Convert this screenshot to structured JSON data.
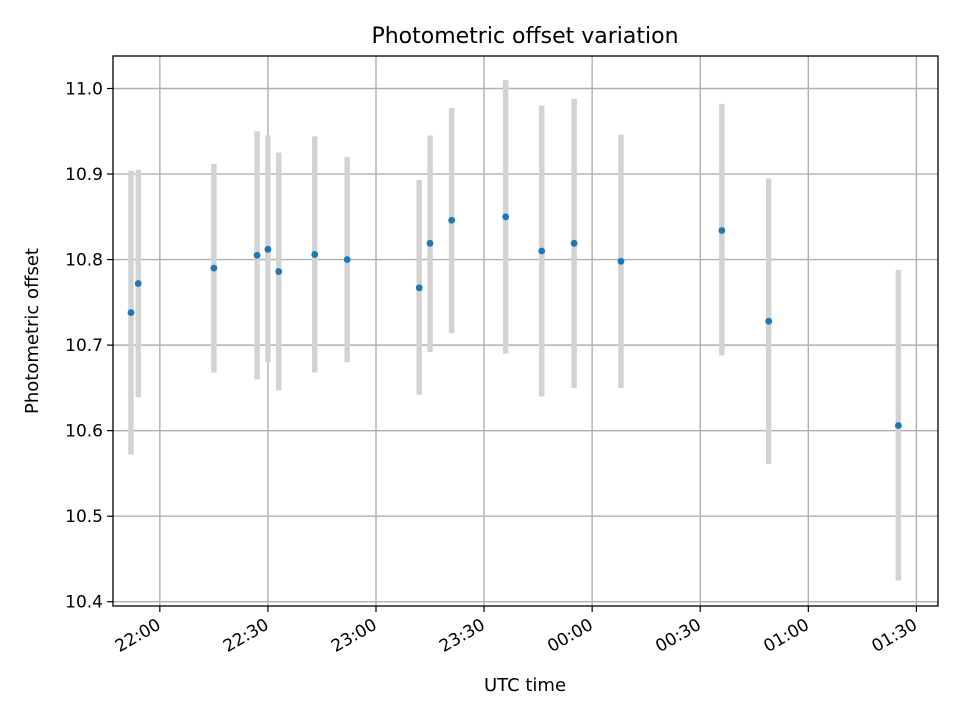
{
  "chart_data": {
    "type": "scatter",
    "title": "Photometric offset variation",
    "xlabel": "UTC time",
    "ylabel": "Photometric offset",
    "xlim": [
      "21:47",
      "01:36"
    ],
    "ylim": [
      10.395,
      11.038
    ],
    "x_ticks": [
      "22:00",
      "22:30",
      "23:00",
      "23:30",
      "00:00",
      "00:30",
      "01:00",
      "01:30"
    ],
    "y_ticks": [
      10.4,
      10.5,
      10.6,
      10.7,
      10.8,
      10.9,
      11.0
    ],
    "grid": true,
    "series": [
      {
        "marker_color": "#1f77b4",
        "errorbar_color": "#d3d3d3",
        "points": [
          {
            "x": "21:52",
            "y": 10.738,
            "ylow": 10.572,
            "yhigh": 10.904
          },
          {
            "x": "21:54",
            "y": 10.772,
            "ylow": 10.639,
            "yhigh": 10.905
          },
          {
            "x": "22:15",
            "y": 10.79,
            "ylow": 10.668,
            "yhigh": 10.912
          },
          {
            "x": "22:27",
            "y": 10.805,
            "ylow": 10.66,
            "yhigh": 10.95
          },
          {
            "x": "22:30",
            "y": 10.812,
            "ylow": 10.68,
            "yhigh": 10.945
          },
          {
            "x": "22:33",
            "y": 10.786,
            "ylow": 10.647,
            "yhigh": 10.925
          },
          {
            "x": "22:43",
            "y": 10.806,
            "ylow": 10.668,
            "yhigh": 10.944
          },
          {
            "x": "22:52",
            "y": 10.8,
            "ylow": 10.68,
            "yhigh": 10.92
          },
          {
            "x": "23:12",
            "y": 10.767,
            "ylow": 10.642,
            "yhigh": 10.893
          },
          {
            "x": "23:15",
            "y": 10.819,
            "ylow": 10.692,
            "yhigh": 10.945
          },
          {
            "x": "23:21",
            "y": 10.846,
            "ylow": 10.714,
            "yhigh": 10.977
          },
          {
            "x": "23:36",
            "y": 10.85,
            "ylow": 10.69,
            "yhigh": 11.01
          },
          {
            "x": "23:46",
            "y": 10.81,
            "ylow": 10.64,
            "yhigh": 10.98
          },
          {
            "x": "23:55",
            "y": 10.819,
            "ylow": 10.65,
            "yhigh": 10.988
          },
          {
            "x": "00:08",
            "y": 10.798,
            "ylow": 10.65,
            "yhigh": 10.946
          },
          {
            "x": "00:36",
            "y": 10.834,
            "ylow": 10.688,
            "yhigh": 10.982
          },
          {
            "x": "00:49",
            "y": 10.728,
            "ylow": 10.561,
            "yhigh": 10.895
          },
          {
            "x": "01:25",
            "y": 10.606,
            "ylow": 10.425,
            "yhigh": 10.788
          }
        ]
      }
    ]
  }
}
